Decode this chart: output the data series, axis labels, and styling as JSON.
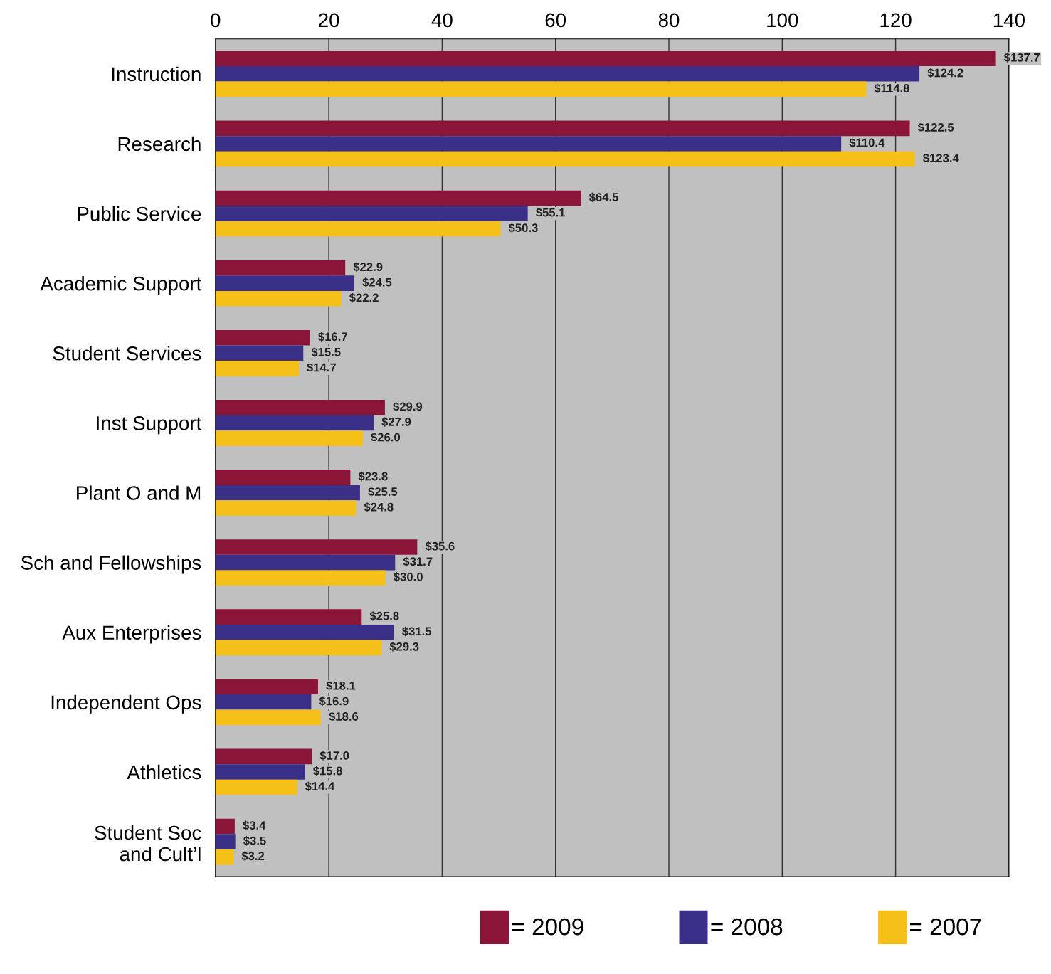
{
  "chart_data": {
    "type": "bar",
    "orientation": "horizontal",
    "categories": [
      "Instruction",
      "Research",
      "Public Service",
      "Academic Support",
      "Student Services",
      "Inst Support",
      "Plant O and M",
      "Sch and Fellowships",
      "Aux Enterprises",
      "Independent Ops",
      "Athletics",
      "Student Soc\nand Cult’l"
    ],
    "series": [
      {
        "name": "= 2009",
        "color": "#8b1538",
        "values": [
          137.7,
          122.5,
          64.5,
          22.9,
          16.7,
          29.9,
          23.8,
          35.6,
          25.8,
          18.1,
          17.0,
          3.4
        ],
        "value_labels": [
          "$137.7",
          "$122.5",
          "$64.5",
          "$22.9",
          "$16.7",
          "$29.9",
          "$23.8",
          "$35.6",
          "$25.8",
          "$18.1",
          "$17.0",
          "$3.4"
        ]
      },
      {
        "name": "= 2008",
        "color": "#3a2f86",
        "values": [
          124.2,
          110.4,
          55.1,
          24.5,
          15.5,
          27.9,
          25.5,
          31.7,
          31.5,
          16.9,
          15.8,
          3.5
        ],
        "value_labels": [
          "$124.2",
          "$110.4",
          "$55.1",
          "$24.5",
          "$15.5",
          "$27.9",
          "$25.5",
          "$31.7",
          "$31.5",
          "$16.9",
          "$15.8",
          "$3.5"
        ]
      },
      {
        "name": "= 2007",
        "color": "#f5c018",
        "values": [
          114.8,
          123.4,
          50.3,
          22.2,
          14.7,
          26.0,
          24.8,
          30.0,
          29.3,
          18.6,
          14.4,
          3.2
        ],
        "value_labels": [
          "$114.8",
          "$123.4",
          "$50.3",
          "$22.2",
          "$14.7",
          "$26.0",
          "$24.8",
          "$30.0",
          "$29.3",
          "$18.6",
          "$14.4",
          "$3.2"
        ]
      }
    ],
    "xlim": [
      0,
      140
    ],
    "xticks": [
      0,
      20,
      40,
      60,
      80,
      100,
      120,
      140
    ],
    "grid": "x",
    "legend": "bottom"
  }
}
